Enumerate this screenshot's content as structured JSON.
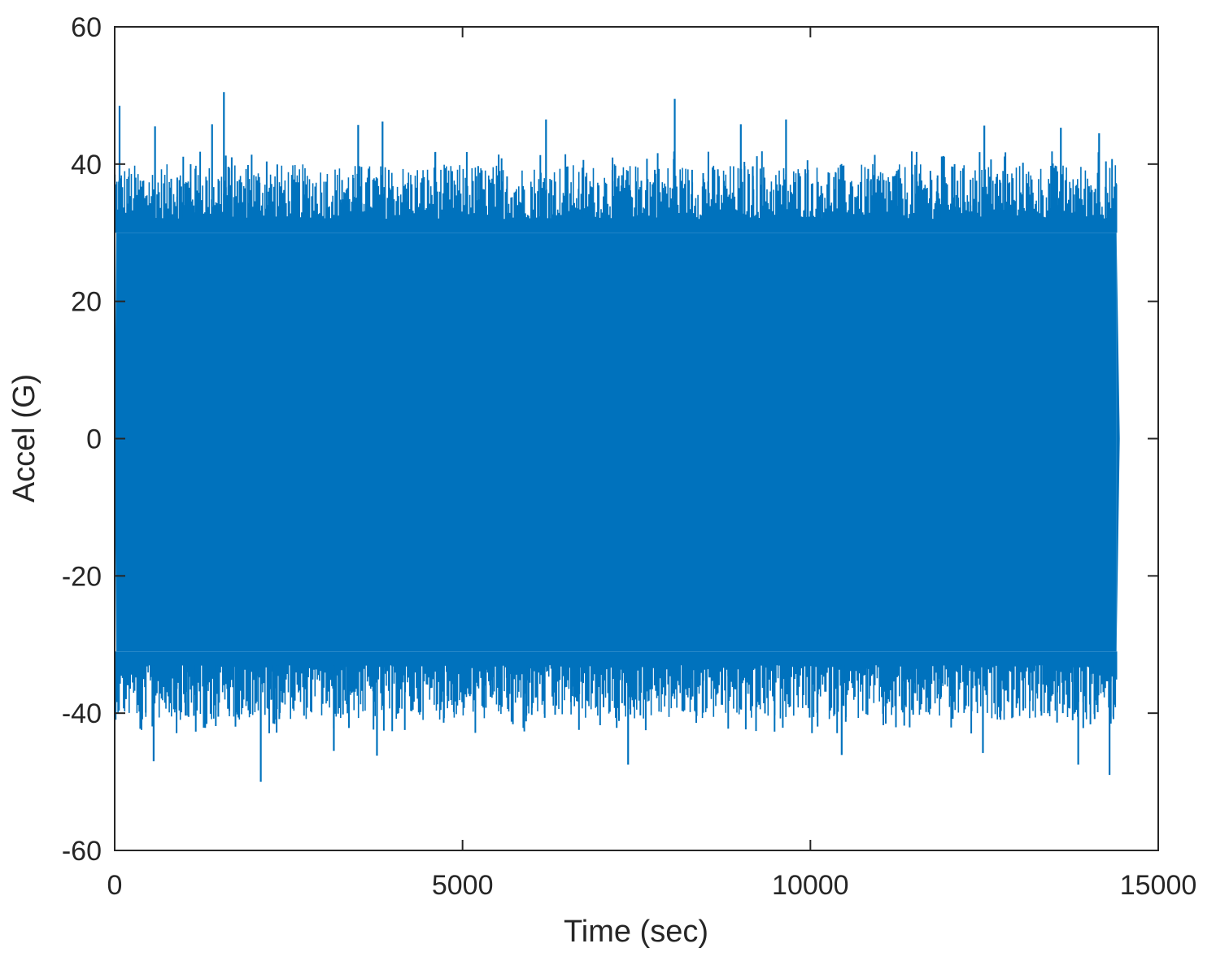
{
  "chart_data": {
    "type": "line",
    "title": "",
    "xlabel": "Time (sec)",
    "ylabel": "Accel (G)",
    "xlim": [
      0,
      15000
    ],
    "ylim": [
      -60,
      60
    ],
    "xticks": [
      0,
      5000,
      10000,
      15000
    ],
    "yticks": [
      -60,
      -40,
      -20,
      0,
      20,
      40,
      60
    ],
    "xtick_labels": [
      "0",
      "5000",
      "10000",
      "15000"
    ],
    "ytick_labels": [
      "-60",
      "-40",
      "-20",
      "0",
      "20",
      "40",
      "60"
    ],
    "grid": false,
    "legend": "none",
    "series": [
      {
        "color": "#0072BD",
        "x_range": [
          0,
          14400
        ],
        "envelope": {
          "typical_max": 36,
          "typical_min": -37,
          "max_value": 50.5,
          "max_at": 1570,
          "min_value": -50,
          "min_at": 2100
        },
        "peaks": [
          {
            "x": 70,
            "y": 48.5
          },
          {
            "x": 580,
            "y": 45.5
          },
          {
            "x": 1400,
            "y": 45.8
          },
          {
            "x": 1570,
            "y": 50.5
          },
          {
            "x": 3500,
            "y": 45.7
          },
          {
            "x": 3850,
            "y": 46.2
          },
          {
            "x": 6200,
            "y": 46.5
          },
          {
            "x": 8050,
            "y": 49.5
          },
          {
            "x": 9000,
            "y": 45.8
          },
          {
            "x": 9650,
            "y": 46.5
          },
          {
            "x": 12500,
            "y": 45.6
          },
          {
            "x": 13600,
            "y": 45.3
          },
          {
            "x": 14150,
            "y": 44.5
          }
        ],
        "troughs": [
          {
            "x": 560,
            "y": -47
          },
          {
            "x": 2100,
            "y": -50
          },
          {
            "x": 3150,
            "y": -45.5
          },
          {
            "x": 3770,
            "y": -46.2
          },
          {
            "x": 7380,
            "y": -47.5
          },
          {
            "x": 10450,
            "y": -46.1
          },
          {
            "x": 12480,
            "y": -45.8
          },
          {
            "x": 13850,
            "y": -47.5
          },
          {
            "x": 14300,
            "y": -49
          }
        ]
      }
    ]
  }
}
